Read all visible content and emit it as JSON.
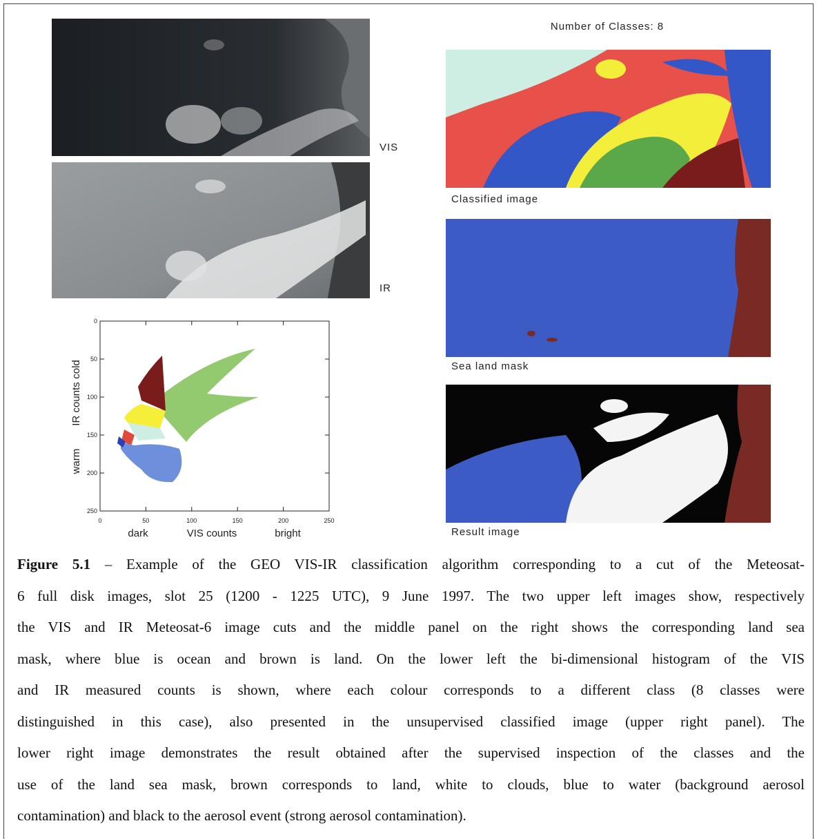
{
  "figure": {
    "panels": {
      "vis_label": "VIS",
      "ir_label": "IR",
      "classes_title": "Number of Classes: 8",
      "classified_caption": "Classified image",
      "mask_caption": "Sea land mask",
      "result_caption": "Result image"
    },
    "histogram": {
      "xlim": [
        0,
        250
      ],
      "ylim": [
        0,
        250
      ],
      "xticks": [
        0,
        50,
        100,
        150,
        200,
        250
      ],
      "yticks": [
        0,
        50,
        100,
        150,
        200,
        250
      ],
      "x_labels": [
        "dark",
        "VIS counts",
        "bright"
      ],
      "y_labels": [
        "warm",
        "IR counts",
        "cold"
      ]
    },
    "caption": {
      "label": "Figure 5.1",
      "lines": [
        "– Example of the GEO VIS-IR classification algorithm corresponding to a cut of the Meteosat-",
        "6 full disk images, slot 25 (1200 - 1225 UTC), 9 June 1997. The two upper left images show, respectively",
        "the VIS and IR Meteosat-6 image cuts and the middle panel on the right shows the corresponding land sea",
        "mask, where blue is ocean and brown is land. On the lower left the bi-dimensional histogram of the VIS",
        "and IR measured counts is shown, where each colour corresponds to a different class (8 classes were",
        "distinguished in this case), also presented in the unsupervised classified image (upper right panel). The",
        "lower right image demonstrates the result obtained after the supervised inspection of the classes and the",
        "use of the land sea mask, brown corresponds to land, white to clouds, blue to water (background aerosol",
        "contamination) and black to the aerosol event (strong aerosol contamination)."
      ]
    }
  }
}
